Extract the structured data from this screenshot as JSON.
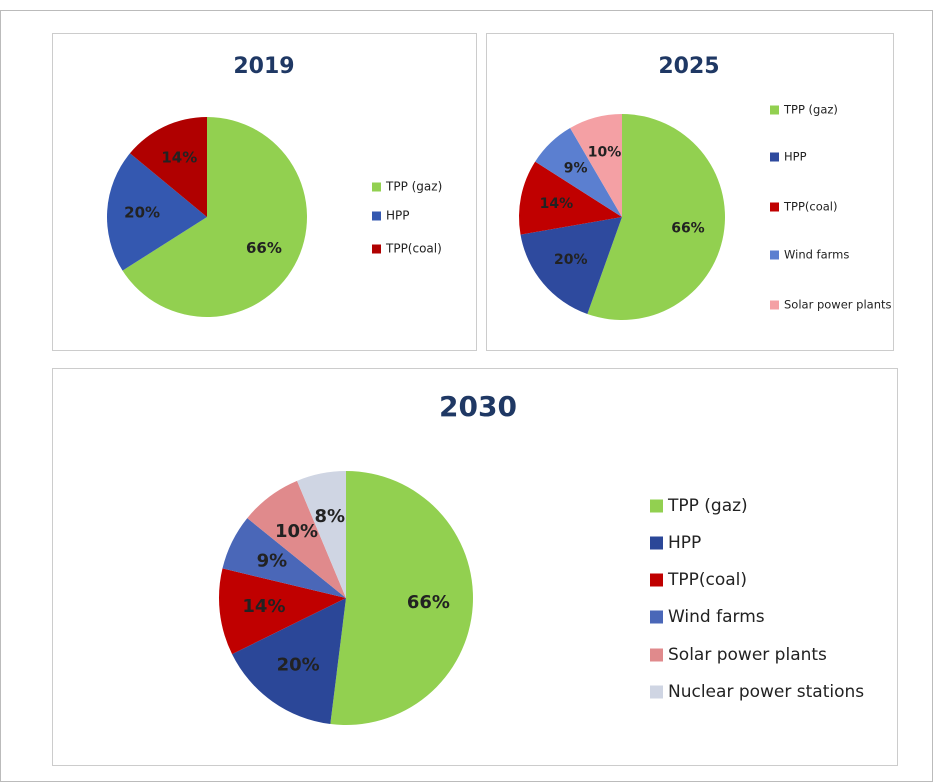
{
  "chart_data": [
    {
      "type": "pie",
      "title": "2019",
      "categories": [
        "TPP (gaz)",
        "HPP",
        "TPP(coal)"
      ],
      "values": [
        66,
        20,
        14
      ],
      "value_labels": [
        "66%",
        "20%",
        "14%"
      ],
      "colors": [
        "#92d050",
        "#3458b0",
        "#b00000"
      ]
    },
    {
      "type": "pie",
      "title": "2025",
      "categories": [
        "TPP (gaz)",
        "HPP",
        "TPP(coal)",
        "Wind farms",
        "Solar power plants"
      ],
      "values": [
        66,
        20,
        14,
        9,
        10
      ],
      "value_labels": [
        "66%",
        "20%",
        "14%",
        "9%",
        "10%"
      ],
      "colors": [
        "#92d050",
        "#2e4a9e",
        "#c00000",
        "#5b7fd0",
        "#f4a0a4"
      ]
    },
    {
      "type": "pie",
      "title": "2030",
      "categories": [
        "TPP (gaz)",
        "HPP",
        "TPP(coal)",
        "Wind farms",
        "Solar power plants",
        "Nuclear power stations"
      ],
      "values": [
        66,
        20,
        14,
        9,
        10,
        8
      ],
      "value_labels": [
        "66%",
        "20%",
        "14%",
        "9%",
        "10%",
        "8%"
      ],
      "colors": [
        "#92d050",
        "#2b4798",
        "#c00000",
        "#4a67b8",
        "#e08a8c",
        "#cfd5e3"
      ]
    }
  ]
}
